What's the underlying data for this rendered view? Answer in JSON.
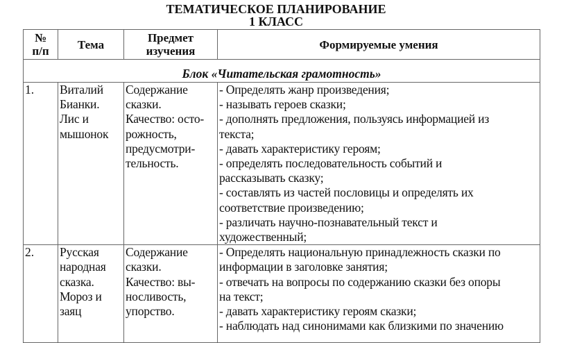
{
  "title": "ТЕМАТИЧЕСКОЕ ПЛАНИРОВАНИЕ",
  "subtitle": "1 КЛАСС",
  "table": {
    "headers": [
      "№ п/п",
      "Тема",
      "Предмет изучения",
      "Формируемые умения"
    ],
    "block": "Блок «Читательская грамотность»",
    "rows": [
      {
        "num": "1.",
        "topic": [
          "Виталий",
          "Бианки.",
          "Лис и",
          "мышонок"
        ],
        "subject": [
          "Содержание",
          "сказки.",
          "Качество: осто-",
          "рожность,",
          "предусмотри-",
          "тельность."
        ],
        "skills": [
          "- Определять жанр произведения;",
          "- называть героев сказки;",
          "- дополнять предложения, пользуясь информацией из",
          "текста;",
          "- давать характеристику героям;",
          "- определять последовательность событий и",
          "рассказывать сказку;",
          "- составлять из частей пословицы и определять их",
          "соответствие произведению;",
          "- различать научно-познавательный текст и",
          "художественный;"
        ]
      },
      {
        "num": "2.",
        "topic": [
          "Русская",
          "народная",
          "сказка.",
          "Мороз и",
          "заяц"
        ],
        "subject": [
          "Содержание",
          "сказки.",
          "Качество: вы-",
          "носливость,",
          "упорство."
        ],
        "skills": [
          "- Определять национальную принадлежность сказки по",
          "информации в заголовке занятия;",
          "- отвечать на вопросы по содержанию сказки без опоры",
          "на текст;",
          "- давать характеристику героям сказки;",
          "- наблюдать над синонимами как близкими по значению"
        ]
      }
    ]
  }
}
